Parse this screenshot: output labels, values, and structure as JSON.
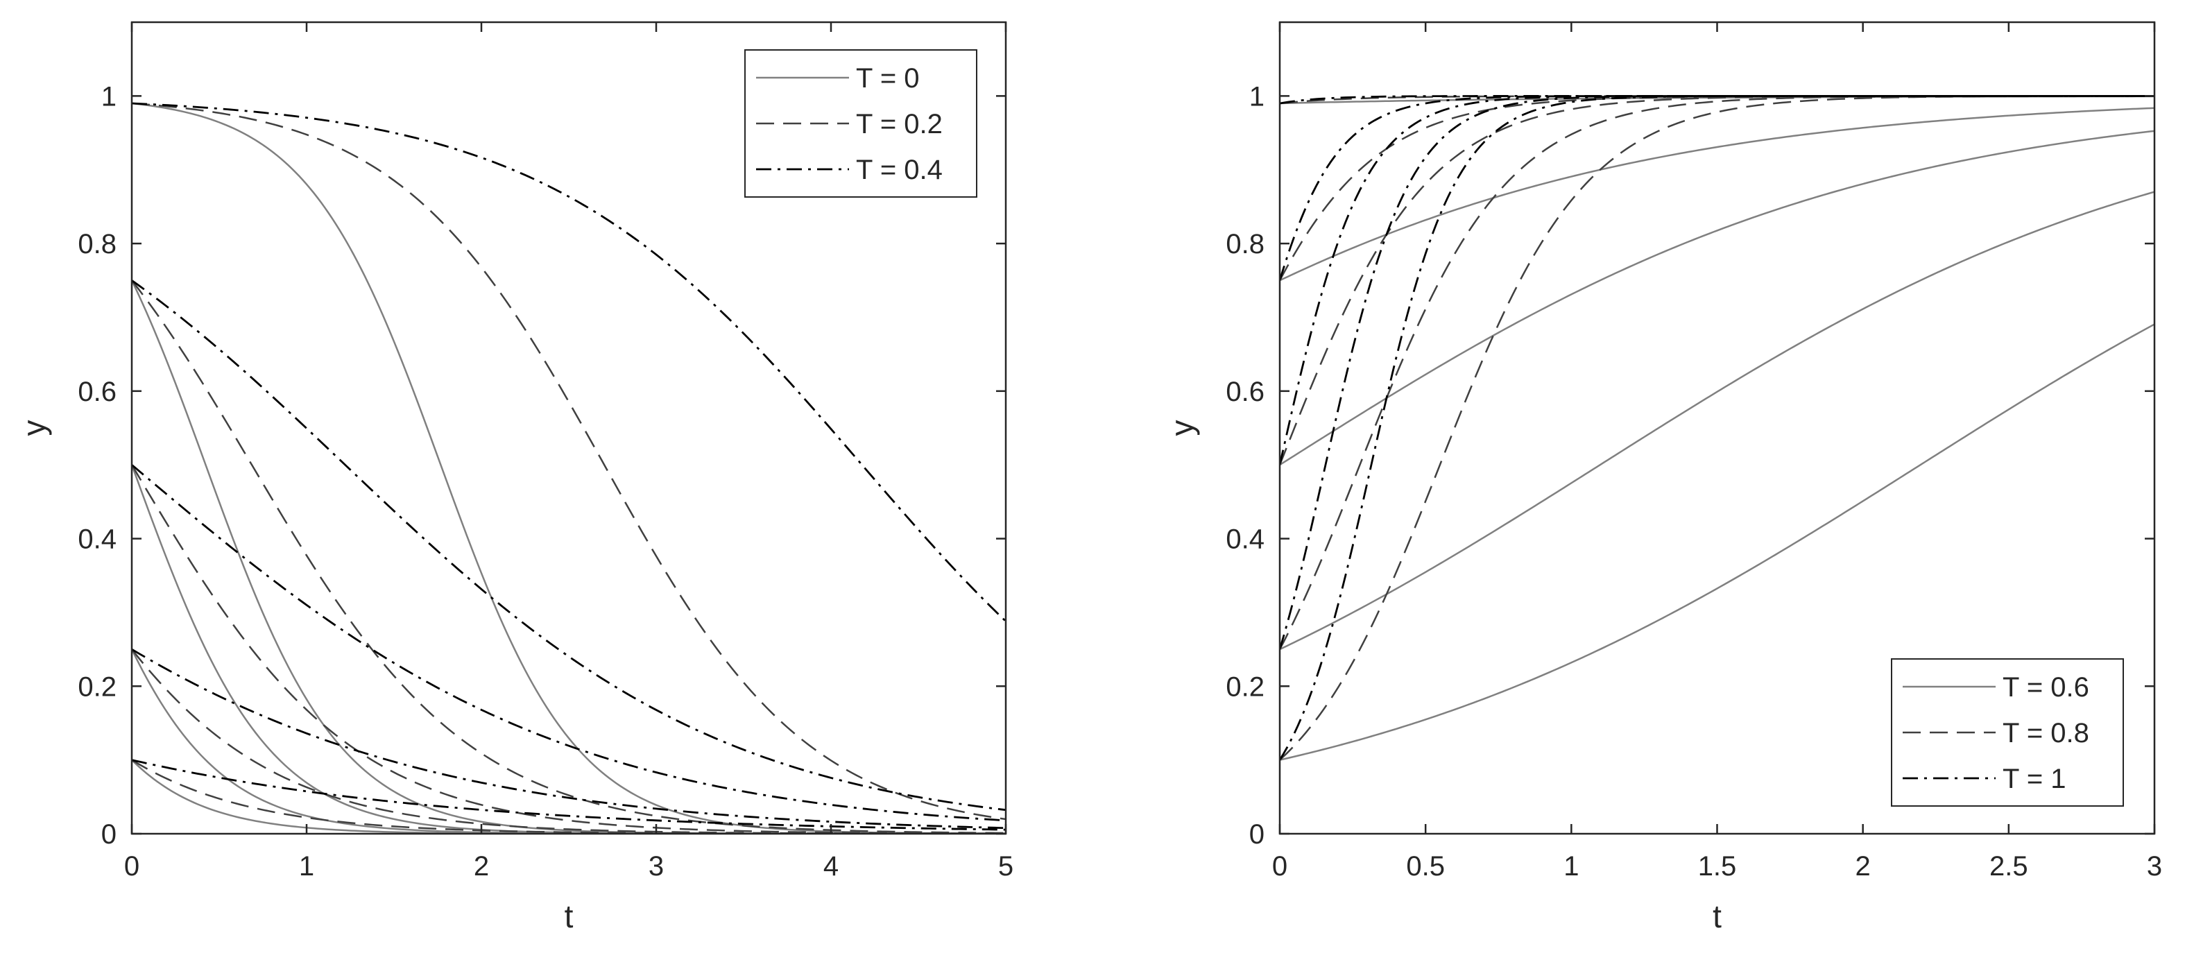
{
  "chart_data": [
    {
      "type": "line",
      "xlabel": "t",
      "ylabel": "y",
      "xlim": [
        0,
        5
      ],
      "ylim": [
        0,
        1.1
      ],
      "xticks": [
        "0",
        "1",
        "2",
        "3",
        "4",
        "5"
      ],
      "yticks": [
        "0",
        "0.2",
        "0.4",
        "0.6",
        "0.8",
        "1"
      ],
      "grid": false,
      "legend_position": "top-right",
      "initial_values": [
        0.1,
        0.25,
        0.5,
        0.75,
        0.99
      ],
      "series": [
        {
          "name": "T = 0",
          "style": "solid",
          "color": "#808080",
          "rates": [
            2.6,
            2.6,
            2.6,
            2.6,
            2.6
          ]
        },
        {
          "name": "T = 0.2",
          "style": "dashed",
          "color": "#404040",
          "rates": [
            1.6,
            1.6,
            1.6,
            1.6,
            1.7
          ]
        },
        {
          "name": "T = 0.4",
          "style": "dashdot",
          "color": "#000000",
          "rates": [
            0.6,
            0.75,
            0.8,
            0.9,
            1.1
          ]
        }
      ]
    },
    {
      "type": "line",
      "xlabel": "t",
      "ylabel": "y",
      "xlim": [
        0,
        3
      ],
      "ylim": [
        0,
        1.1
      ],
      "xticks": [
        "0",
        "0.5",
        "1",
        "1.5",
        "2",
        "2.5",
        "3"
      ],
      "yticks": [
        "0",
        "0.2",
        "0.4",
        "0.6",
        "0.8",
        "1"
      ],
      "grid": false,
      "legend_position": "bottom-right",
      "initial_values": [
        0.1,
        0.25,
        0.5,
        0.75,
        0.99
      ],
      "series": [
        {
          "name": "T = 0.6",
          "style": "solid",
          "color": "#808080",
          "rates": [
            1.0,
            1.0,
            1.0,
            1.0,
            1.0
          ]
        },
        {
          "name": "T = 0.8",
          "style": "dashed",
          "color": "#404040",
          "rates": [
            4.0,
            4.0,
            4.0,
            4.0,
            4.0
          ]
        },
        {
          "name": "T = 1",
          "style": "dashdot",
          "color": "#000000",
          "rates": [
            7.0,
            7.0,
            7.0,
            7.0,
            7.0
          ]
        }
      ]
    }
  ]
}
